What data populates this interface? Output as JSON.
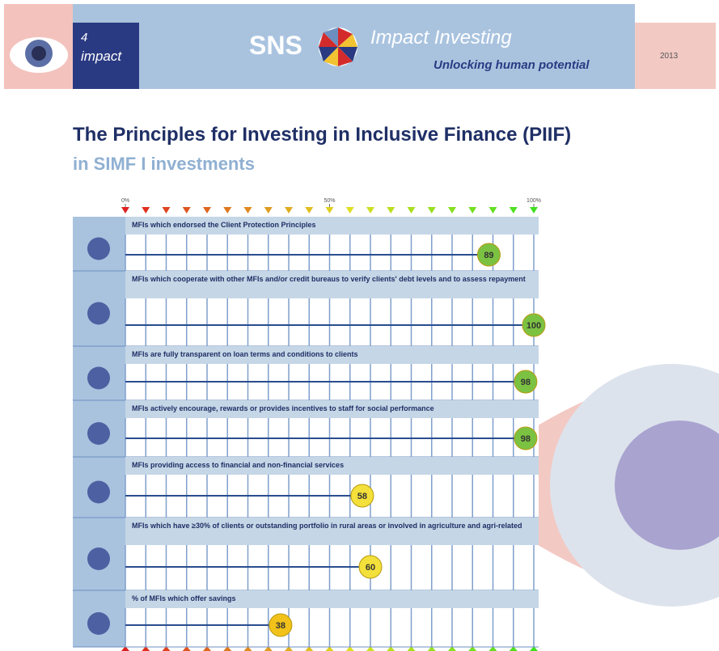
{
  "header": {
    "logo_number": "4",
    "logo_word": "impact",
    "brand": "SNS",
    "brand_subtitle": "Impact Investing",
    "tagline": "Unlocking human potential",
    "year": "2013"
  },
  "chart_data": {
    "type": "bar",
    "orientation": "horizontal",
    "title": "The Principles for Investing in Inclusive Finance (PIIF)",
    "subtitle": "in SIMF I investments",
    "categories": [
      "MFIs which endorsed the Client Protection Principles",
      "MFIs which cooperate with other MFIs and/or credit bureaus to verify clients' debt levels and to assess repayment",
      "MFIs are fully transparent on loan terms and conditions to clients",
      "MFIs actively encourage, rewards or provides incentives to staff for social performance",
      "MFIs providing access to financial and non-financial services",
      "MFIs which have ≥30% of clients or outstanding portfolio in rural areas or involved in agriculture and agri-related",
      "% of MFIs which offer savings"
    ],
    "values": [
      89,
      100,
      98,
      98,
      58,
      60,
      38
    ],
    "colors": [
      "#7cc242",
      "#7cc242",
      "#7cc242",
      "#7cc242",
      "#f3e03a",
      "#f3e03a",
      "#f2c21a"
    ],
    "xlim": [
      0,
      100
    ],
    "xticks": [
      {
        "value": 0,
        "label": "0%"
      },
      {
        "value": 50,
        "label": "50%"
      },
      {
        "value": 100,
        "label": "100%"
      }
    ],
    "xgrid": [
      0,
      5,
      10,
      15,
      20,
      25,
      30,
      35,
      40,
      45,
      50,
      55,
      60,
      65,
      70,
      75,
      80,
      85,
      90,
      95,
      100
    ],
    "grid": true
  }
}
